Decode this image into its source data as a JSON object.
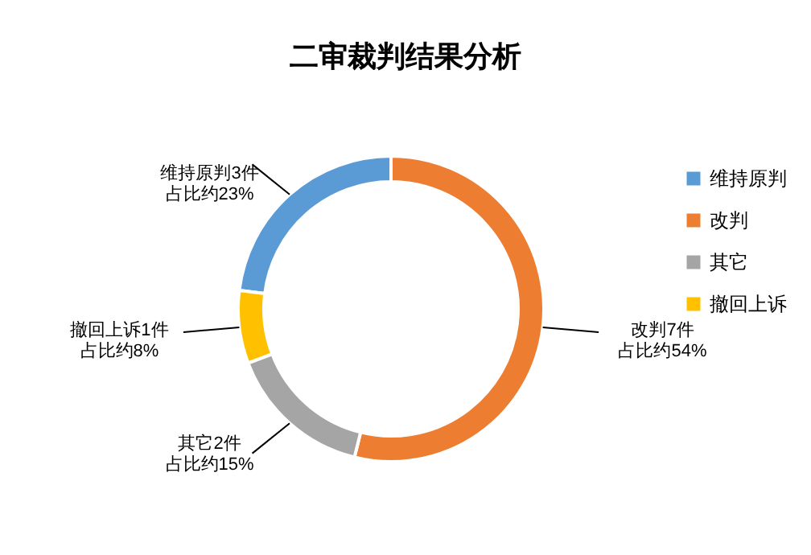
{
  "chart_data": {
    "type": "donut",
    "title": "二审裁判结果分析",
    "categories": [
      "维持原判",
      "改判",
      "其它",
      "撤回上诉"
    ],
    "values": [
      3,
      7,
      2,
      1
    ],
    "colors": [
      "#5b9bd5",
      "#ed7d31",
      "#a5a5a5",
      "#ffc000"
    ],
    "value_labels": [
      "维持原判3件占比约23%",
      "改判7件占比约54%",
      "其它2件占比约15%",
      "撤回上诉1件占比约8%"
    ],
    "legend": "right"
  }
}
